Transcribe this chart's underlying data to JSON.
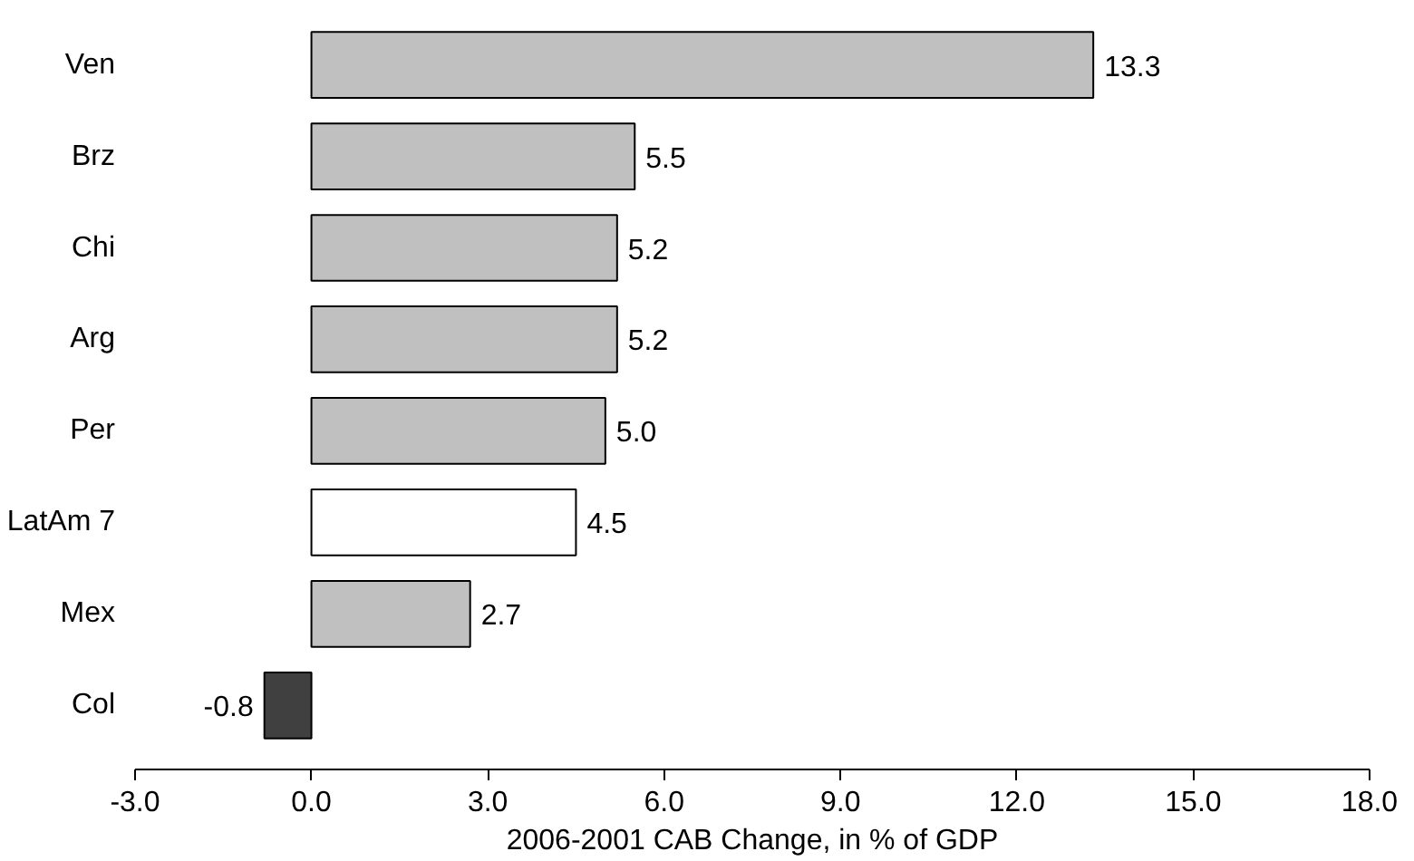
{
  "chart_data": {
    "type": "bar",
    "orientation": "horizontal",
    "xlabel": "2006-2001 CAB Change, in % of GDP",
    "categories": [
      "Ven",
      "Brz",
      "Chi",
      "Arg",
      "Per",
      "LatAm 7",
      "Mex",
      "Col"
    ],
    "values": [
      13.3,
      5.5,
      5.2,
      5.2,
      5.0,
      4.5,
      2.7,
      -0.8
    ],
    "colors": [
      "#c0c0c0",
      "#c0c0c0",
      "#c0c0c0",
      "#c0c0c0",
      "#c0c0c0",
      "#ffffff",
      "#c0c0c0",
      "#404040"
    ],
    "value_labels": [
      "13.3",
      "5.5",
      "5.2",
      "5.2",
      "5.0",
      "4.5",
      "2.7",
      "-0.8"
    ],
    "xlim": [
      -3,
      18
    ],
    "xticks": [
      {
        "value": -3,
        "label": "-3.0"
      },
      {
        "value": 0,
        "label": "0.0"
      },
      {
        "value": 3,
        "label": "3.0"
      },
      {
        "value": 6,
        "label": "6.0"
      },
      {
        "value": 9,
        "label": "9.0"
      },
      {
        "value": 12,
        "label": "12.0"
      },
      {
        "value": 15,
        "label": "15.0"
      },
      {
        "value": 18,
        "label": "18.0"
      }
    ],
    "grid": false
  }
}
